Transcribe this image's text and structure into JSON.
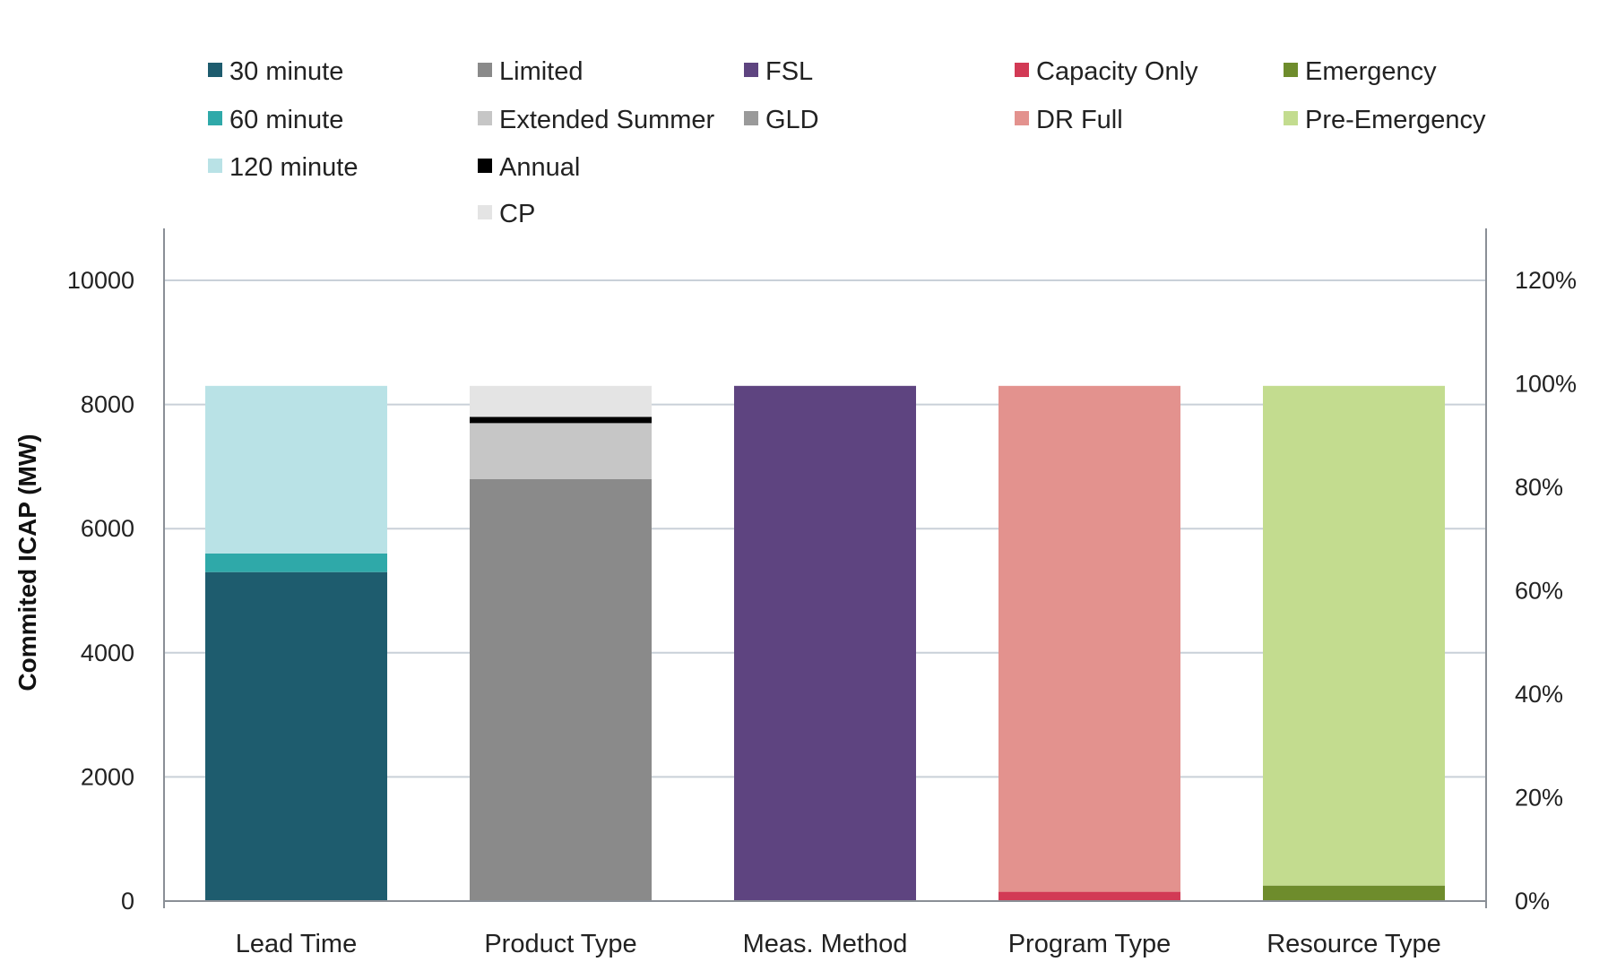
{
  "chart_data": {
    "type": "bar",
    "stacked": true,
    "title": "",
    "xlabel": "",
    "ylabel": "Commited ICAP (MW)",
    "ylim": [
      0,
      10000
    ],
    "y_ticks": [
      "0",
      "2000",
      "4000",
      "6000",
      "8000",
      "10000"
    ],
    "y2lim": [
      0,
      120
    ],
    "y2_ticks": [
      "0%",
      "20%",
      "40%",
      "60%",
      "80%",
      "100%",
      "120%"
    ],
    "grid": true,
    "legend_position": "top",
    "categories": [
      "Lead Time",
      "Product Type",
      "Meas. Method",
      "Program Type",
      "Resource Type"
    ],
    "series": [
      {
        "name": "30 minute",
        "color": "#1e5c6e",
        "values": [
          5300,
          0,
          0,
          0,
          0
        ]
      },
      {
        "name": "60 minute",
        "color": "#2fa9a9",
        "values": [
          300,
          0,
          0,
          0,
          0
        ]
      },
      {
        "name": "120 minute",
        "color": "#b9e2e6",
        "values": [
          2700,
          0,
          0,
          0,
          0
        ]
      },
      {
        "name": "Limited",
        "color": "#8a8a8a",
        "values": [
          0,
          6800,
          0,
          0,
          0
        ]
      },
      {
        "name": "Extended Summer",
        "color": "#c6c6c6",
        "values": [
          0,
          900,
          0,
          0,
          0
        ]
      },
      {
        "name": "Annual",
        "color": "#000000",
        "values": [
          0,
          100,
          0,
          0,
          0
        ]
      },
      {
        "name": "CP",
        "color": "#e4e4e4",
        "values": [
          0,
          500,
          0,
          0,
          0
        ]
      },
      {
        "name": "FSL",
        "color": "#5e4480",
        "values": [
          0,
          0,
          8300,
          0,
          0
        ]
      },
      {
        "name": "GLD",
        "color": "#9a9a9a",
        "values": [
          0,
          0,
          0,
          0,
          0
        ]
      },
      {
        "name": "Capacity Only",
        "color": "#d23a55",
        "values": [
          0,
          0,
          0,
          150,
          0
        ]
      },
      {
        "name": "DR Full",
        "color": "#e3928e",
        "values": [
          0,
          0,
          0,
          8150,
          0
        ]
      },
      {
        "name": "Emergency",
        "color": "#6e8c2c",
        "values": [
          0,
          0,
          0,
          0,
          250
        ]
      },
      {
        "name": "Pre-Emergency",
        "color": "#c3dc8f",
        "values": [
          0,
          0,
          0,
          0,
          8050
        ]
      }
    ],
    "legend_columns": [
      [
        "30 minute",
        "60 minute",
        "120 minute"
      ],
      [
        "Limited",
        "Extended Summer",
        "Annual",
        "CP"
      ],
      [
        "FSL",
        "GLD"
      ],
      [
        "Capacity Only",
        "DR Full"
      ],
      [
        "Emergency",
        "Pre-Emergency"
      ]
    ]
  }
}
